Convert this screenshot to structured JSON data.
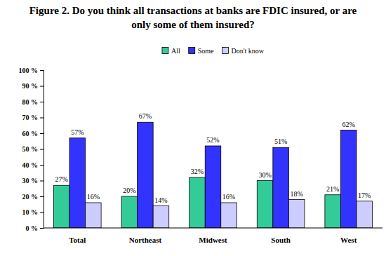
{
  "chart_data": {
    "type": "bar",
    "title": "Figure 2.  Do you think all transactions at banks are FDIC insured, or are only some of them insured?",
    "categories": [
      "Total",
      "Northeast",
      "Midwest",
      "South",
      "West"
    ],
    "series": [
      {
        "name": "All",
        "color": "#33cc99",
        "values": [
          27,
          20,
          32,
          30,
          21
        ],
        "value_labels": [
          "27%",
          "20%",
          "32%",
          "30%",
          "21%"
        ]
      },
      {
        "name": "Some",
        "color": "#3333ff",
        "values": [
          57,
          67,
          52,
          51,
          62
        ],
        "value_labels": [
          "57%",
          "67%",
          "52%",
          "51%",
          "62%"
        ]
      },
      {
        "name": "Don't know",
        "color": "#ccccff",
        "values": [
          16,
          14,
          16,
          18,
          17
        ],
        "value_labels": [
          "16%",
          "14%",
          "16%",
          "18%",
          "17%"
        ]
      }
    ],
    "ylim": [
      0,
      100
    ],
    "yticks": [
      {
        "value": 0,
        "label": "0 %"
      },
      {
        "value": 10,
        "label": "10 %"
      },
      {
        "value": 20,
        "label": "20 %"
      },
      {
        "value": 30,
        "label": "30 %"
      },
      {
        "value": 40,
        "label": "40 %"
      },
      {
        "value": 50,
        "label": "50 %"
      },
      {
        "value": 60,
        "label": "60 %"
      },
      {
        "value": 70,
        "label": "70 %"
      },
      {
        "value": 80,
        "label": "80 %"
      },
      {
        "value": 90,
        "label": "90 %"
      },
      {
        "value": 100,
        "label": "100 %"
      }
    ],
    "grid": false,
    "legend": "top",
    "data_labels": true
  }
}
